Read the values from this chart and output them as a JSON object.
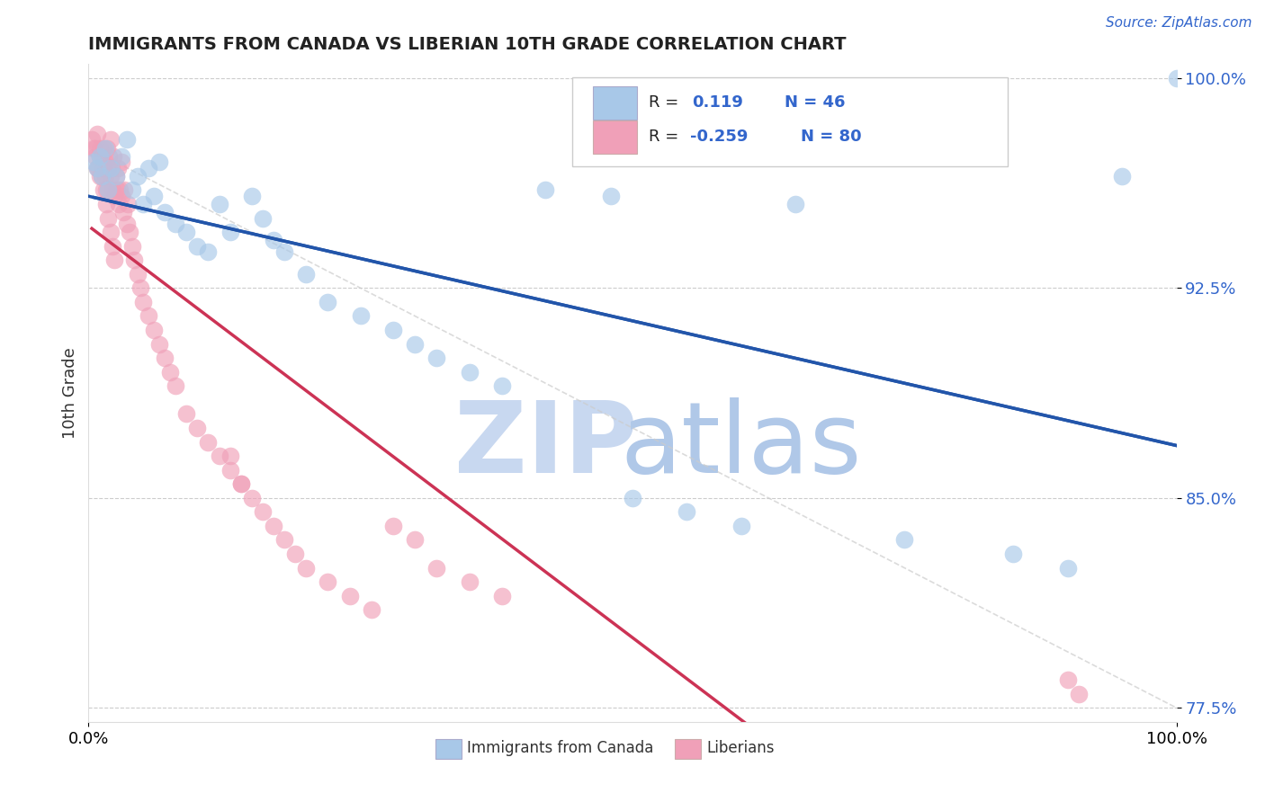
{
  "title": "IMMIGRANTS FROM CANADA VS LIBERIAN 10TH GRADE CORRELATION CHART",
  "source_text": "Source: ZipAtlas.com",
  "ylabel": "10th Grade",
  "y_ticks": [
    0.775,
    0.85,
    0.925,
    1.0
  ],
  "y_tick_labels": [
    "77.5%",
    "85.0%",
    "92.5%",
    "100.0%"
  ],
  "legend_blue_label": "Immigrants from Canada",
  "legend_pink_label": "Liberians",
  "blue_color": "#a8c8e8",
  "pink_color": "#f0a0b8",
  "blue_line_color": "#2255aa",
  "pink_line_color": "#cc3355",
  "diag_color": "#cccccc",
  "watermark_zip_color": "#c8d8f0",
  "watermark_atlas_color": "#b0c8e8",
  "blue_scatter_x": [
    0.005,
    0.008,
    0.01,
    0.012,
    0.015,
    0.018,
    0.02,
    0.025,
    0.03,
    0.035,
    0.04,
    0.045,
    0.05,
    0.055,
    0.06,
    0.065,
    0.07,
    0.08,
    0.09,
    0.1,
    0.11,
    0.12,
    0.13,
    0.15,
    0.16,
    0.17,
    0.18,
    0.2,
    0.22,
    0.25,
    0.28,
    0.3,
    0.32,
    0.35,
    0.38,
    0.42,
    0.48,
    0.5,
    0.55,
    0.6,
    0.65,
    0.75,
    0.85,
    0.9,
    0.95,
    1.0
  ],
  "blue_scatter_y": [
    0.97,
    0.968,
    0.972,
    0.965,
    0.975,
    0.96,
    0.968,
    0.965,
    0.972,
    0.978,
    0.96,
    0.965,
    0.955,
    0.968,
    0.958,
    0.97,
    0.952,
    0.948,
    0.945,
    0.94,
    0.938,
    0.955,
    0.945,
    0.958,
    0.95,
    0.942,
    0.938,
    0.93,
    0.92,
    0.915,
    0.91,
    0.905,
    0.9,
    0.895,
    0.89,
    0.96,
    0.958,
    0.85,
    0.845,
    0.84,
    0.955,
    0.835,
    0.83,
    0.825,
    0.965,
    1.0
  ],
  "pink_scatter_x": [
    0.003,
    0.005,
    0.006,
    0.008,
    0.009,
    0.01,
    0.01,
    0.012,
    0.013,
    0.014,
    0.015,
    0.015,
    0.016,
    0.017,
    0.018,
    0.018,
    0.019,
    0.02,
    0.02,
    0.021,
    0.022,
    0.023,
    0.024,
    0.025,
    0.026,
    0.027,
    0.028,
    0.029,
    0.03,
    0.03,
    0.032,
    0.033,
    0.035,
    0.036,
    0.038,
    0.04,
    0.042,
    0.045,
    0.048,
    0.05,
    0.055,
    0.06,
    0.065,
    0.07,
    0.075,
    0.08,
    0.09,
    0.1,
    0.11,
    0.12,
    0.13,
    0.14,
    0.15,
    0.16,
    0.17,
    0.18,
    0.19,
    0.2,
    0.22,
    0.24,
    0.26,
    0.28,
    0.3,
    0.32,
    0.35,
    0.38,
    0.13,
    0.14,
    0.9,
    0.91,
    0.006,
    0.008,
    0.01,
    0.012,
    0.014,
    0.016,
    0.018,
    0.02,
    0.022,
    0.024
  ],
  "pink_scatter_y": [
    0.978,
    0.975,
    0.972,
    0.98,
    0.968,
    0.975,
    0.965,
    0.972,
    0.968,
    0.975,
    0.965,
    0.97,
    0.96,
    0.975,
    0.968,
    0.96,
    0.972,
    0.978,
    0.965,
    0.968,
    0.96,
    0.972,
    0.958,
    0.965,
    0.96,
    0.968,
    0.955,
    0.96,
    0.97,
    0.958,
    0.952,
    0.96,
    0.948,
    0.955,
    0.945,
    0.94,
    0.935,
    0.93,
    0.925,
    0.92,
    0.915,
    0.91,
    0.905,
    0.9,
    0.895,
    0.89,
    0.88,
    0.875,
    0.87,
    0.865,
    0.86,
    0.855,
    0.85,
    0.845,
    0.84,
    0.835,
    0.83,
    0.825,
    0.82,
    0.815,
    0.81,
    0.84,
    0.835,
    0.825,
    0.82,
    0.815,
    0.865,
    0.855,
    0.785,
    0.78,
    0.975,
    0.968,
    0.972,
    0.965,
    0.96,
    0.955,
    0.95,
    0.945,
    0.94,
    0.935
  ]
}
